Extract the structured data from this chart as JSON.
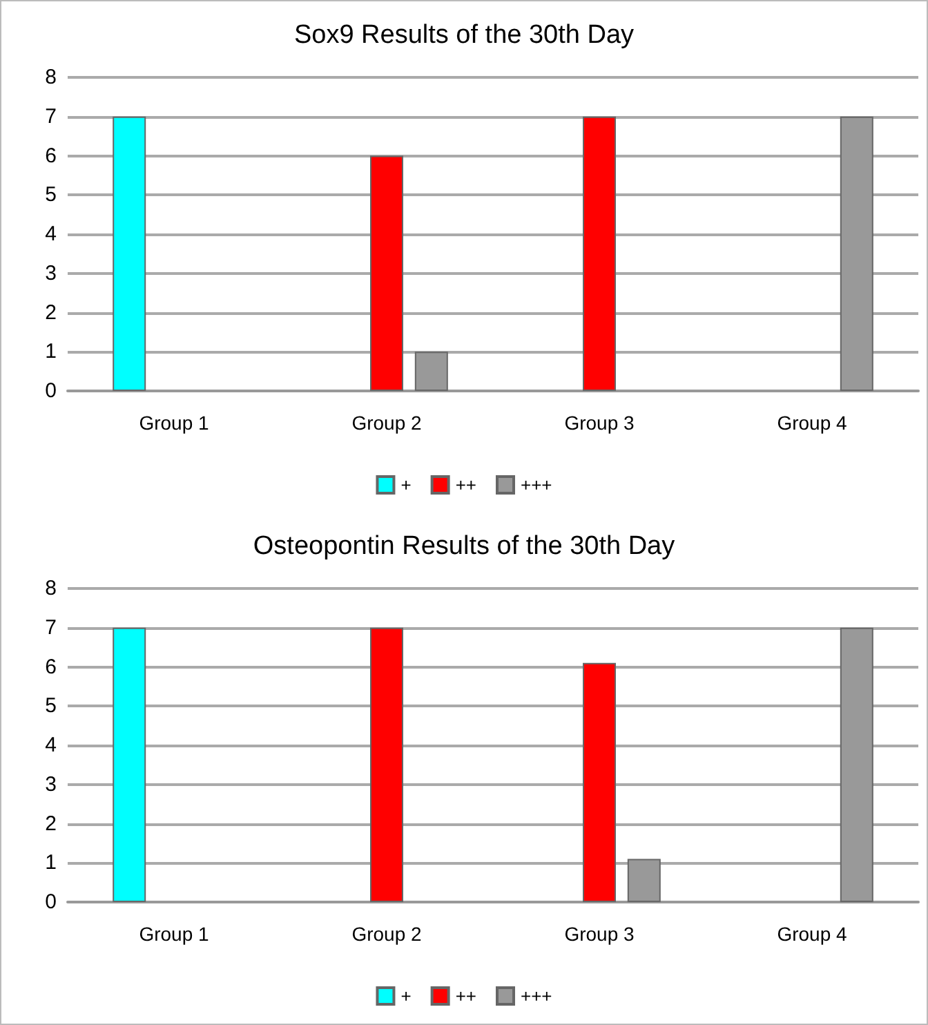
{
  "chart_data": [
    {
      "type": "bar",
      "title": "Sox9 Results of the 30th Day",
      "categories": [
        "Group 1",
        "Group 2",
        "Group 3",
        "Group 4"
      ],
      "series": [
        {
          "name": "+",
          "color": "#00ffff",
          "values": [
            7,
            null,
            null,
            null
          ]
        },
        {
          "name": "++",
          "color": "#ff0000",
          "values": [
            null,
            6,
            7,
            null
          ]
        },
        {
          "name": "+++",
          "color": "#999999",
          "values": [
            null,
            1,
            null,
            7
          ]
        }
      ],
      "ylim": [
        0,
        8
      ],
      "yticks": [
        0,
        1,
        2,
        3,
        4,
        5,
        6,
        7,
        8
      ],
      "grid": "y",
      "legend": "bottom"
    },
    {
      "type": "bar",
      "title": "Osteopontin Results of the 30th Day",
      "categories": [
        "Group 1",
        "Group 2",
        "Group 3",
        "Group 4"
      ],
      "series": [
        {
          "name": "+",
          "color": "#00ffff",
          "values": [
            7,
            null,
            null,
            null
          ]
        },
        {
          "name": "++",
          "color": "#ff0000",
          "values": [
            null,
            7,
            6.1,
            null
          ]
        },
        {
          "name": "+++",
          "color": "#999999",
          "values": [
            null,
            null,
            1.1,
            7
          ]
        }
      ],
      "ylim": [
        0,
        8
      ],
      "yticks": [
        0,
        1,
        2,
        3,
        4,
        5,
        6,
        7,
        8
      ],
      "grid": "y",
      "legend": "bottom"
    }
  ]
}
